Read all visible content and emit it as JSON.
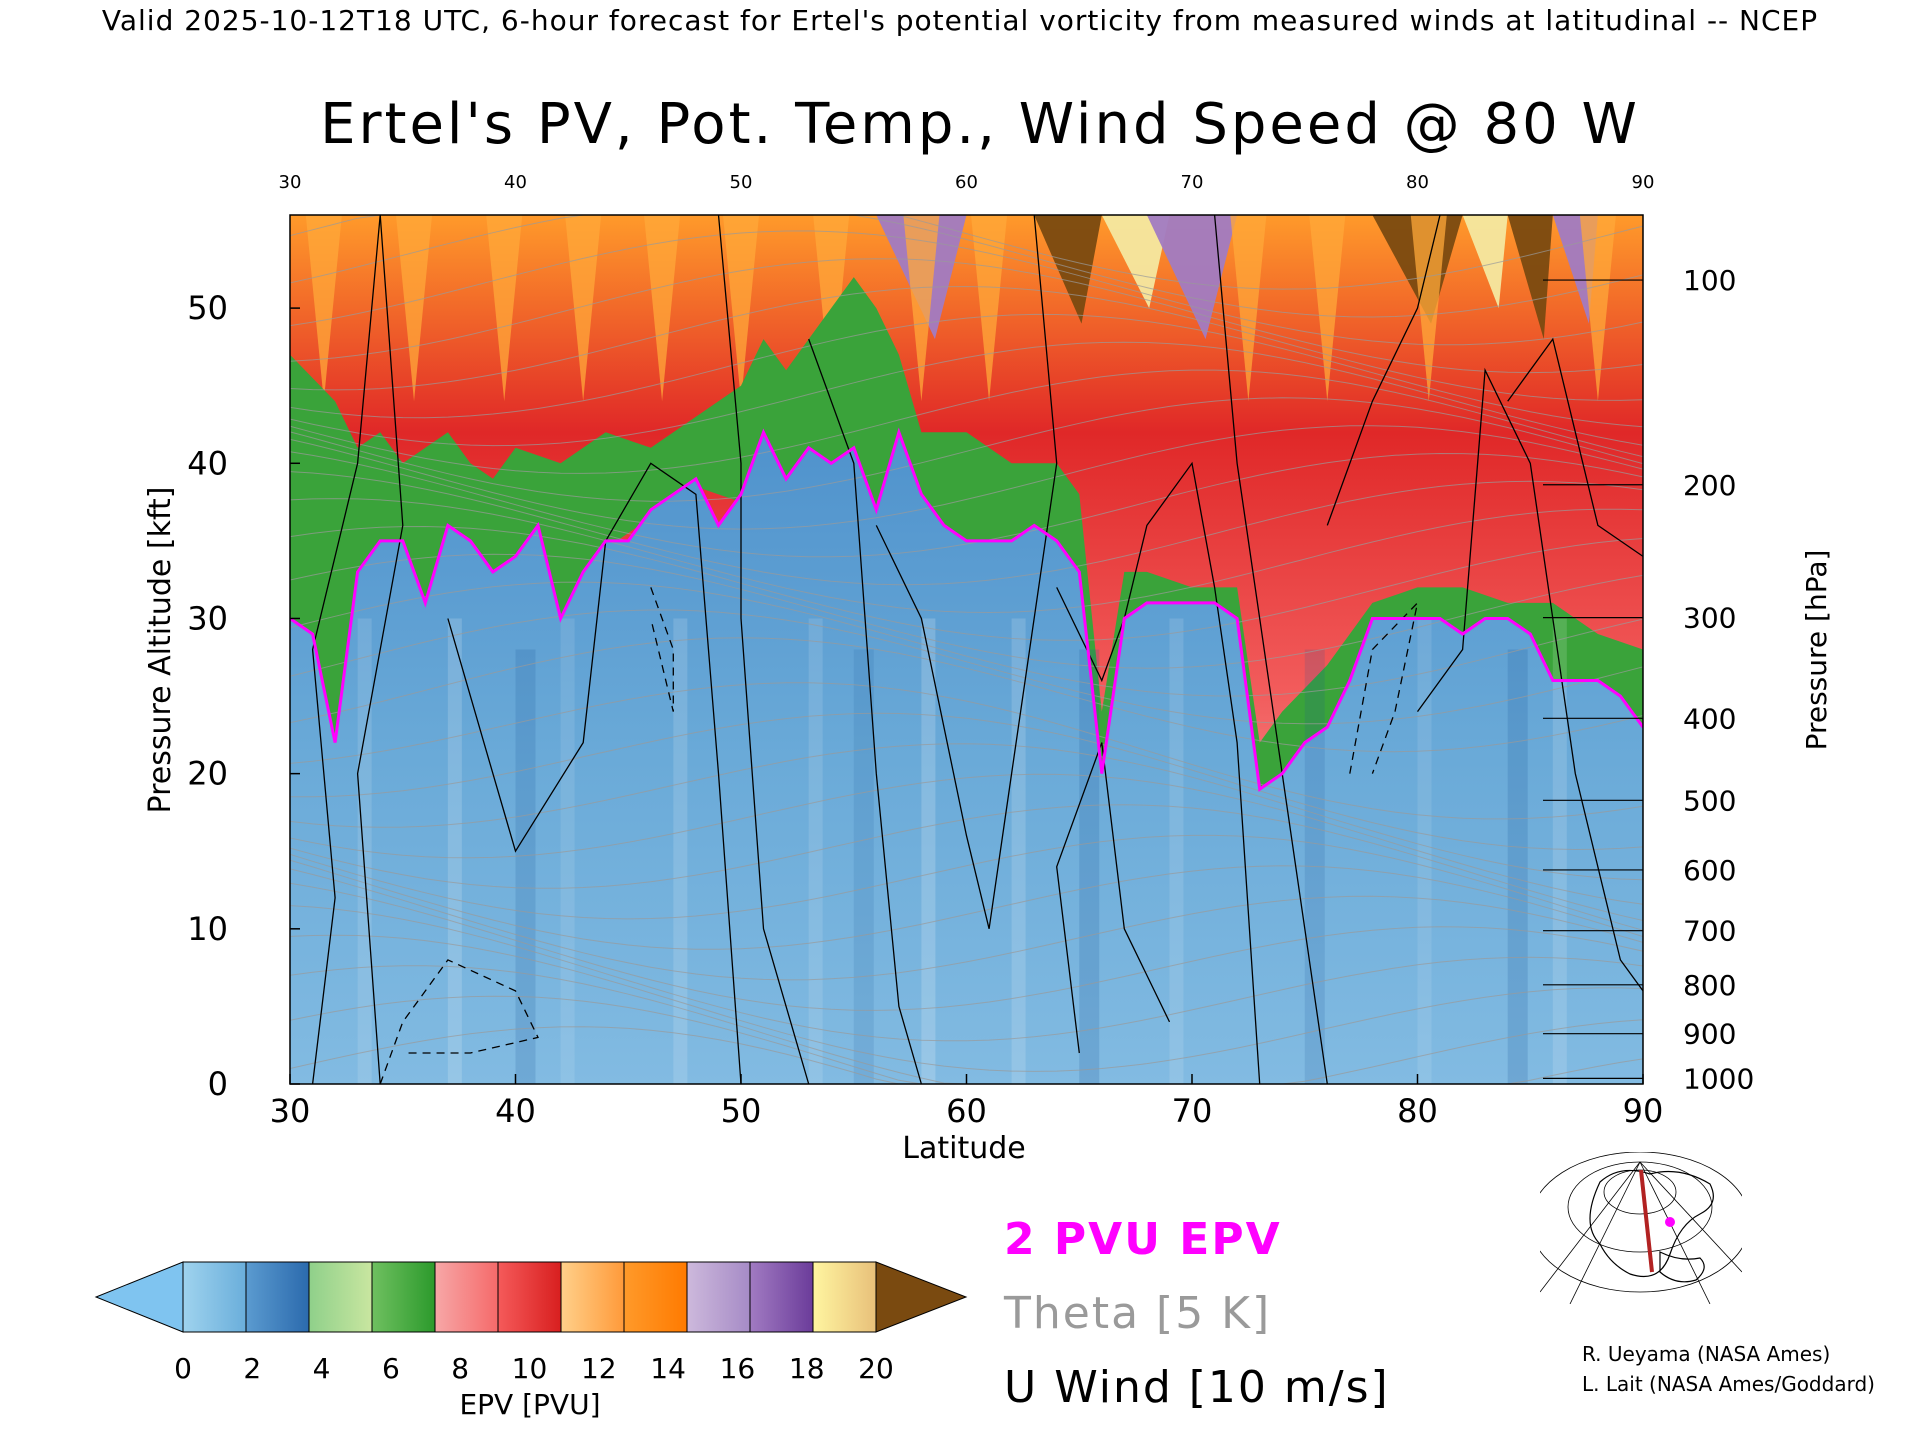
{
  "header": {
    "text": "Valid 2025-10-12T18 UTC, 6-hour forecast for Ertel's potential vorticity from measured winds at latitudinal -- NCEP"
  },
  "chart_data": {
    "type": "heatmap",
    "title": "Ertel's PV, Pot. Temp., Wind Speed @ 80 W",
    "xlabel": "Latitude",
    "ylabel": "Pressure Altitude [kft]",
    "y2label": "Pressure [hPa]",
    "xlim": [
      30,
      90
    ],
    "ylim": [
      0,
      56
    ],
    "x_ticks": [
      30,
      40,
      50,
      60,
      70,
      80,
      90
    ],
    "top_ticks": [
      30,
      40,
      50,
      60,
      70,
      80,
      90
    ],
    "y_ticks": [
      0,
      10,
      20,
      30,
      40,
      50
    ],
    "pressure_ticks": [
      1000,
      900,
      800,
      700,
      600,
      500,
      400,
      300,
      200,
      100
    ],
    "tropopause_2pvu_kft": [
      [
        30,
        30
      ],
      [
        31,
        29
      ],
      [
        32,
        22
      ],
      [
        33,
        33
      ],
      [
        34,
        35
      ],
      [
        35,
        35
      ],
      [
        36,
        31
      ],
      [
        37,
        36
      ],
      [
        38,
        35
      ],
      [
        39,
        33
      ],
      [
        40,
        34
      ],
      [
        41,
        36
      ],
      [
        42,
        30
      ],
      [
        43,
        33
      ],
      [
        44,
        35
      ],
      [
        45,
        35
      ],
      [
        46,
        37
      ],
      [
        47,
        38
      ],
      [
        48,
        39
      ],
      [
        49,
        36
      ],
      [
        50,
        38
      ],
      [
        51,
        42
      ],
      [
        52,
        39
      ],
      [
        53,
        41
      ],
      [
        54,
        40
      ],
      [
        55,
        41
      ],
      [
        56,
        37
      ],
      [
        57,
        42
      ],
      [
        58,
        38
      ],
      [
        59,
        36
      ],
      [
        60,
        35
      ],
      [
        61,
        35
      ],
      [
        62,
        35
      ],
      [
        63,
        36
      ],
      [
        64,
        35
      ],
      [
        65,
        33
      ],
      [
        66,
        20
      ],
      [
        67,
        30
      ],
      [
        68,
        31
      ],
      [
        69,
        31
      ],
      [
        70,
        31
      ],
      [
        71,
        31
      ],
      [
        72,
        30
      ],
      [
        73,
        19
      ],
      [
        74,
        20
      ],
      [
        75,
        22
      ],
      [
        76,
        23
      ],
      [
        77,
        26
      ],
      [
        78,
        30
      ],
      [
        79,
        30
      ],
      [
        80,
        30
      ],
      [
        81,
        30
      ],
      [
        82,
        29
      ],
      [
        83,
        30
      ],
      [
        84,
        30
      ],
      [
        85,
        29
      ],
      [
        86,
        26
      ],
      [
        87,
        26
      ],
      [
        88,
        26
      ],
      [
        89,
        25
      ],
      [
        90,
        23
      ]
    ],
    "epv_bands": [
      {
        "x": [
          30,
          32,
          33,
          34,
          35,
          36,
          37,
          38,
          39,
          40,
          42,
          44,
          46,
          48,
          50,
          51,
          52,
          54,
          55,
          56,
          57,
          58,
          60,
          62,
          64,
          65,
          66,
          67,
          68,
          70,
          72,
          73,
          74,
          76,
          78,
          80,
          82,
          84,
          86,
          88,
          90
        ],
        "green_top": [
          47,
          44,
          41,
          42,
          40,
          41,
          42,
          40,
          39,
          41,
          40,
          42,
          41,
          43,
          45,
          48,
          46,
          50,
          52,
          50,
          47,
          42,
          42,
          40,
          40,
          38,
          24,
          33,
          33,
          32,
          32,
          22,
          24,
          27,
          31,
          32,
          32,
          31,
          31,
          29,
          28
        ]
      }
    ],
    "colorbar": {
      "label": "EPV [PVU]",
      "ticks": [
        "0",
        "2",
        "4",
        "6",
        "8",
        "10",
        "12",
        "14",
        "16",
        "18",
        "20"
      ],
      "segments": [
        [
          "#9fd3ee",
          "#6aaedb"
        ],
        [
          "#5b9bd0",
          "#2b6aad"
        ],
        [
          "#8fd08a",
          "#c9e6a0"
        ],
        [
          "#6fc060",
          "#2c9a2c"
        ],
        [
          "#f7a7a7",
          "#f56a6a"
        ],
        [
          "#f55a5a",
          "#d81f1f"
        ],
        [
          "#ffd08a",
          "#ff9a3a"
        ],
        [
          "#ff9a2a",
          "#ff7a00"
        ],
        [
          "#cdb9dc",
          "#a68bc6"
        ],
        [
          "#a17bc2",
          "#6b3c9a"
        ],
        [
          "#fff5a0",
          "#e8c07a"
        ]
      ],
      "under_color": "#7fc4f0",
      "over_color": "#7a4a10"
    },
    "colors": {
      "pvu2": "#ff00ff",
      "theta": "#9a9a9a",
      "uwind": "#000000"
    }
  },
  "legend": {
    "pvu": "2 PVU EPV",
    "theta": "Theta [5 K]",
    "uwind": "U Wind [10 m/s]"
  },
  "credits": {
    "line1": "R. Ueyama (NASA Ames)",
    "line2": "L. Lait (NASA Ames/Goddard)"
  }
}
